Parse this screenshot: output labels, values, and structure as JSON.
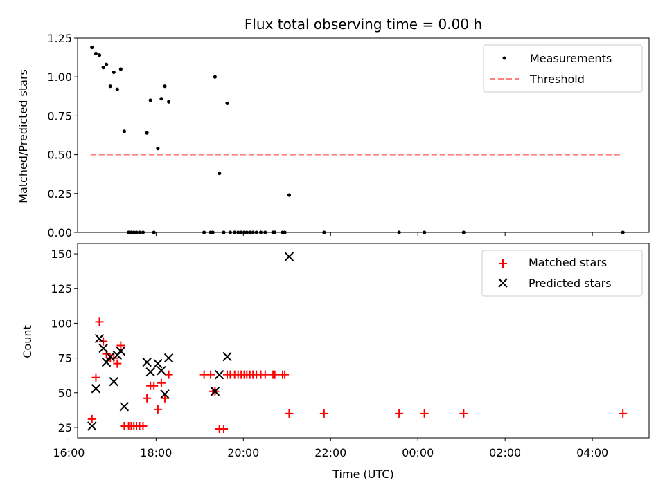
{
  "chart_data": [
    {
      "type": "scatter",
      "title": "Flux total observing time = 0.00 h",
      "xlabel": "",
      "ylabel": "Matched/Predicted stars",
      "ylim": [
        0,
        1.25
      ],
      "xlim": [
        16.2,
        29.3
      ],
      "yticks": [
        "0.00",
        "0.25",
        "0.50",
        "0.75",
        "1.00",
        "1.25"
      ],
      "legend_position": "top-right",
      "grid": false,
      "series": [
        {
          "name": "Measurements",
          "kind": "points",
          "color": "#000000",
          "x": [
            16.53,
            16.62,
            16.7,
            16.79,
            16.86,
            16.95,
            17.03,
            17.11,
            17.19,
            17.27,
            17.79,
            17.87,
            18.04,
            18.12,
            18.2,
            18.29,
            19.35,
            19.45,
            19.63,
            21.05,
            17.37,
            17.43,
            17.49,
            17.55,
            17.62,
            17.7,
            17.95,
            19.1,
            19.25,
            19.3,
            19.55,
            19.7,
            19.8,
            19.88,
            19.95,
            20.02,
            20.08,
            20.15,
            20.22,
            20.3,
            20.4,
            20.5,
            20.68,
            20.72,
            20.9,
            20.95,
            21.85,
            23.57,
            24.15,
            25.05,
            28.7
          ],
          "y": [
            1.19,
            1.15,
            1.14,
            1.06,
            1.08,
            0.94,
            1.03,
            0.92,
            1.05,
            0.65,
            0.64,
            0.85,
            0.54,
            0.86,
            0.94,
            0.84,
            1.0,
            0.38,
            0.83,
            0.24,
            0,
            0,
            0,
            0,
            0,
            0,
            0,
            0,
            0,
            0,
            0,
            0,
            0,
            0,
            0,
            0,
            0,
            0,
            0,
            0,
            0,
            0,
            0,
            0,
            0,
            0,
            0,
            0,
            0,
            0,
            0
          ]
        },
        {
          "name": "Threshold",
          "kind": "dashed-line",
          "color": "#ff7f7f",
          "x": [
            16.5,
            28.7
          ],
          "y": [
            0.5,
            0.5
          ]
        }
      ]
    },
    {
      "type": "scatter",
      "title": "",
      "xlabel": "Time (UTC)",
      "ylabel": "Count",
      "ylim": [
        17.5,
        157.5
      ],
      "xlim": [
        16.2,
        29.3
      ],
      "yticks": [
        "25",
        "50",
        "75",
        "100",
        "125",
        "150"
      ],
      "xtick_values": [
        16,
        18,
        20,
        22,
        24,
        26,
        28
      ],
      "xtick_labels": [
        "16:00",
        "18:00",
        "20:00",
        "22:00",
        "00:00",
        "02:00",
        "04:00"
      ],
      "legend_position": "top-right",
      "grid": false,
      "series": [
        {
          "name": "Matched stars",
          "kind": "plus",
          "color": "#ff0000",
          "x": [
            16.53,
            16.62,
            16.7,
            16.79,
            16.86,
            16.95,
            17.03,
            17.11,
            17.19,
            17.27,
            17.37,
            17.43,
            17.49,
            17.55,
            17.62,
            17.7,
            17.79,
            17.87,
            17.95,
            18.04,
            18.12,
            18.2,
            18.29,
            19.1,
            19.25,
            19.3,
            19.35,
            19.45,
            19.55,
            19.63,
            19.7,
            19.8,
            19.88,
            19.95,
            20.02,
            20.08,
            20.15,
            20.22,
            20.3,
            20.4,
            20.5,
            20.68,
            20.72,
            20.9,
            20.95,
            21.05,
            21.85,
            23.57,
            24.15,
            25.05,
            28.7
          ],
          "y": [
            31,
            61,
            101,
            87,
            78,
            75,
            75,
            71,
            84,
            26,
            26,
            26,
            26,
            26,
            26,
            26,
            46,
            55,
            55,
            38,
            57,
            46,
            63,
            63,
            63,
            51,
            51,
            24,
            24,
            63,
            63,
            63,
            63,
            63,
            63,
            63,
            63,
            63,
            63,
            63,
            63,
            63,
            63,
            63,
            63,
            35,
            35,
            35,
            35,
            35,
            35
          ]
        },
        {
          "name": "Predicted stars",
          "kind": "cross",
          "color": "#000000",
          "x": [
            16.53,
            16.62,
            16.7,
            16.79,
            16.86,
            16.95,
            17.03,
            17.11,
            17.19,
            17.27,
            17.79,
            17.87,
            18.04,
            18.12,
            18.2,
            18.29,
            19.35,
            19.45,
            19.63,
            21.05
          ],
          "y": [
            26,
            53,
            89,
            82,
            72,
            76,
            58,
            77,
            80,
            40,
            72,
            65,
            71,
            66,
            49,
            75,
            51,
            63,
            76,
            148
          ]
        }
      ]
    }
  ]
}
